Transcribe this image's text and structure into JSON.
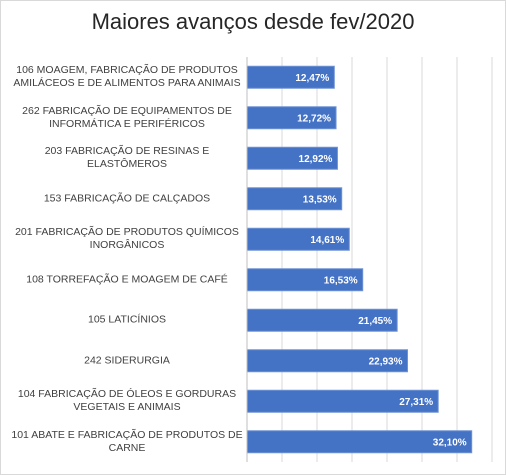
{
  "chart_data": {
    "type": "bar",
    "orientation": "horizontal",
    "title": "Maiores avanços desde fev/2020",
    "categories": [
      "106 MOAGEM, FABRICAÇÃO DE PRODUTOS AMILÁCEOS E DE ALIMENTOS PARA ANIMAIS",
      "262 FABRICAÇÃO DE EQUIPAMENTOS DE INFORMÁTICA E PERIFÉRICOS",
      "203 FABRICAÇÃO DE RESINAS E ELASTÔMEROS",
      "153 FABRICAÇÃO DE CALÇADOS",
      "201 FABRICAÇÃO DE PRODUTOS QUÍMICOS INORGÂNICOS",
      "108 TORREFAÇÃO E MOAGEM DE CAFÉ",
      "105 LATICÍNIOS",
      "242 SIDERURGIA",
      "104 FABRICAÇÃO DE ÓLEOS E GORDURAS VEGETAIS E ANIMAIS",
      "101 ABATE E FABRICAÇÃO DE PRODUTOS DE CARNE"
    ],
    "values": [
      12.47,
      12.72,
      12.92,
      13.53,
      14.61,
      16.53,
      21.45,
      22.93,
      27.31,
      32.1
    ],
    "value_labels": [
      "12,47%",
      "12,72%",
      "12,92%",
      "13,53%",
      "14,61%",
      "16,53%",
      "21,45%",
      "22,93%",
      "27,31%",
      "32,10%"
    ],
    "color": "#4472c4",
    "xlim": [
      0,
      35
    ],
    "xticks": [
      0,
      5,
      10,
      15,
      20,
      25,
      30,
      35
    ],
    "grid": true
  }
}
